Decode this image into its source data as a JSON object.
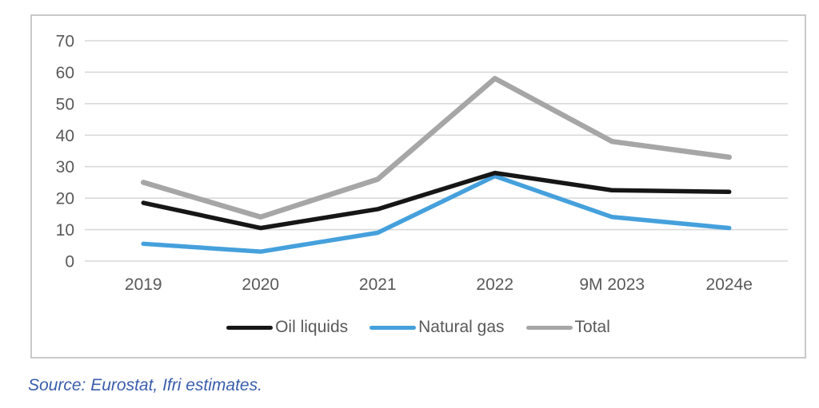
{
  "chart_data": {
    "type": "line",
    "title": "",
    "xlabel": "",
    "ylabel": "",
    "categories": [
      "2019",
      "2020",
      "2021",
      "2022",
      "9M 2023",
      "2024e"
    ],
    "series": [
      {
        "name": "Oil liquids",
        "color": "#161616",
        "values": [
          18.5,
          10.5,
          16.5,
          28,
          22.5,
          22
        ]
      },
      {
        "name": "Natural gas",
        "color": "#45a0dc",
        "values": [
          5.5,
          3,
          9,
          27,
          14,
          10.5
        ]
      },
      {
        "name": "Total",
        "color": "#a6a6a6",
        "values": [
          25,
          14,
          26,
          58,
          38,
          33
        ]
      }
    ],
    "ylim": [
      0,
      70
    ],
    "yticks": [
      0,
      10,
      20,
      30,
      40,
      50,
      60,
      70
    ],
    "grid": "horizontal",
    "legend_position": "bottom"
  },
  "colors": {
    "gridline": "#d9d9d9",
    "axis_text": "#595959",
    "frame_border": "#c9c9c9",
    "source_text": "#3a5dab"
  },
  "source": {
    "text": "Source: Eurostat, Ifri estimates."
  }
}
